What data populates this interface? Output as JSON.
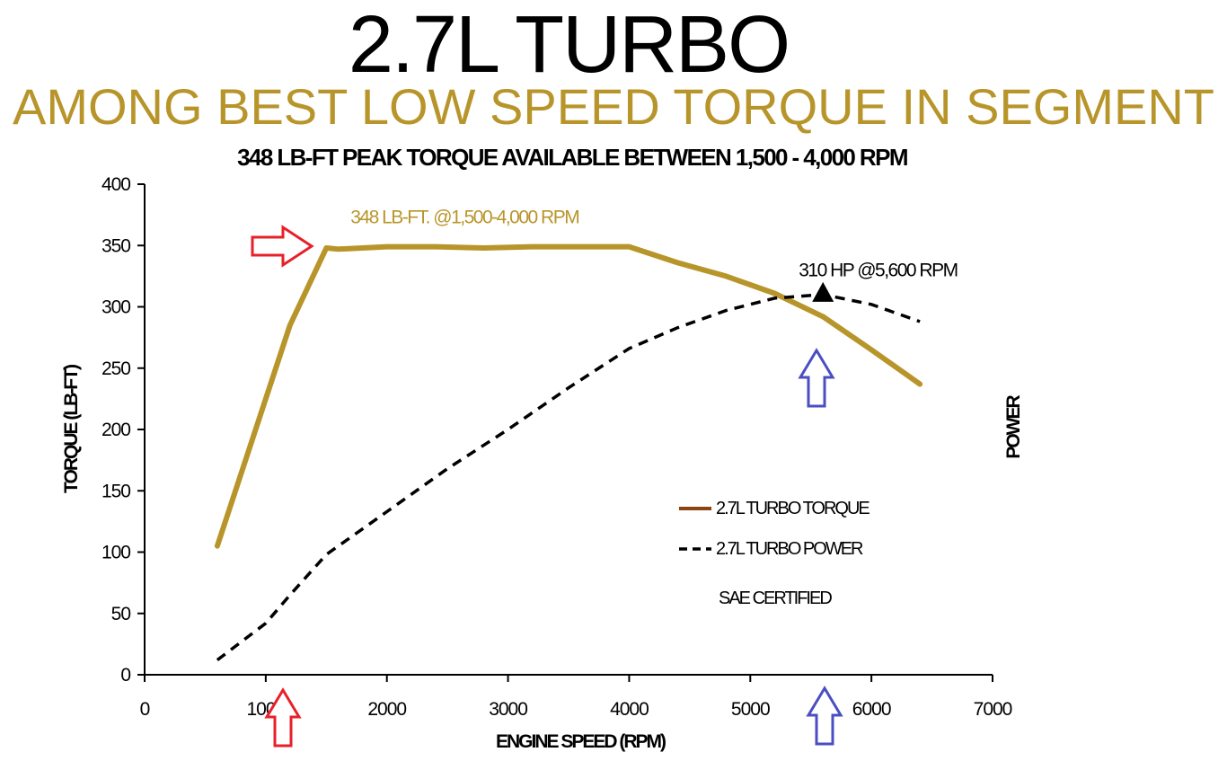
{
  "header": {
    "title": "2.7L TURBO",
    "subtitle": "AMONG BEST LOW SPEED TORQUE IN SEGMENT",
    "heading": "348 LB-FT PEAK TORQUE AVAILABLE BETWEEN 1,500 - 4,000 RPM"
  },
  "colors": {
    "torque": "#b8952a",
    "power": "#000000",
    "arrow_red": "#e8202a",
    "arrow_blue": "#4a4ec2"
  },
  "chart_data": {
    "type": "line",
    "xlabel": "ENGINE SPEED (RPM)",
    "ylabel": "TORQUE (LB-FT)",
    "y2label": "POWER",
    "xlim": [
      0,
      7000
    ],
    "ylim": [
      0,
      400
    ],
    "xticks": [
      "0",
      "1000",
      "2000",
      "3000",
      "4000",
      "5000",
      "6000",
      "7000"
    ],
    "yticks": [
      "0",
      "50",
      "100",
      "150",
      "200",
      "250",
      "300",
      "350",
      "400"
    ],
    "grid": false,
    "legend_position": "lower-right",
    "series": [
      {
        "name": "2.7L TURBO TORQUE",
        "style": "solid",
        "x": [
          600,
          1200,
          1500,
          1600,
          2000,
          2400,
          2800,
          3200,
          3600,
          4000,
          4400,
          4800,
          5200,
          5600,
          6000,
          6400
        ],
        "y": [
          105,
          285,
          348,
          347,
          349,
          349,
          348,
          349,
          349,
          349,
          336,
          325,
          311,
          292,
          265,
          237
        ]
      },
      {
        "name": "2.7L TURBO POWER",
        "style": "dashed",
        "x": [
          600,
          1000,
          1200,
          1500,
          2000,
          2500,
          3000,
          3500,
          4000,
          4400,
          4800,
          5200,
          5600,
          6000,
          6400
        ],
        "y": [
          12,
          42,
          65,
          98,
          133,
          168,
          200,
          234,
          266,
          283,
          297,
          307,
          310,
          302,
          288
        ]
      }
    ],
    "annotations": [
      {
        "text": "348 LB-FT. @1,500-4,000 RPM",
        "x": 1700,
        "y": 368,
        "color": "torque"
      },
      {
        "text": "310 HP @5,600 RPM",
        "x": 5400,
        "y": 325,
        "color": "power"
      }
    ],
    "peak_marker": {
      "x": 5600,
      "y": 310
    },
    "footnote": "SAE CERTIFIED"
  }
}
